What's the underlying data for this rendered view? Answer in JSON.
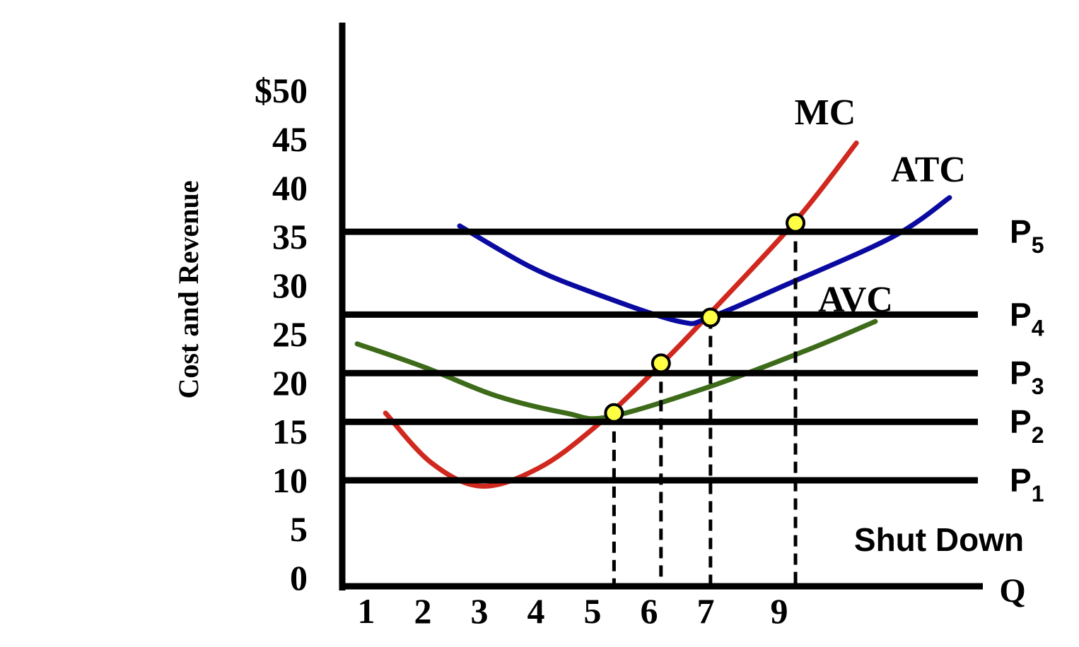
{
  "chart_data": {
    "type": "line",
    "title": "",
    "ylabel": "Cost and Revenue",
    "xlabel": "Q",
    "ylim": [
      0,
      50
    ],
    "y_ticks": [
      "0",
      "5",
      "10",
      "15",
      "20",
      "25",
      "30",
      "35",
      "40",
      "45",
      "$50"
    ],
    "y_tick_values": [
      0,
      5,
      10,
      15,
      20,
      25,
      30,
      35,
      40,
      45,
      50
    ],
    "x_ticks": [
      "1",
      "2",
      "3",
      "4",
      "5",
      "6",
      "7",
      "9"
    ],
    "x_tick_values": [
      1,
      2,
      3,
      4,
      5,
      6,
      7,
      9
    ],
    "grid": false,
    "series": [
      {
        "name": "MC",
        "color": "#d0281e",
        "x": [
          1.34,
          2.15,
          3.03,
          4.03,
          5.03,
          6.21,
          7.06,
          9.42,
          11.06
        ],
        "y": [
          16.9,
          11.8,
          9.4,
          11.2,
          15.4,
          21.9,
          26.9,
          36.6,
          44.6
        ]
      },
      {
        "name": "ATC",
        "color": "#0a0aa0",
        "x": [
          2.65,
          3.9,
          5.03,
          6.53,
          7.1,
          9.19,
          12.05,
          13.57
        ],
        "y": [
          36.1,
          31.9,
          29.2,
          26.3,
          26.7,
          30.1,
          35.0,
          39.0
        ]
      },
      {
        "name": "AVC",
        "color": "#3d6b1a",
        "x": [
          0.84,
          2.03,
          3.28,
          4.53,
          5.28,
          7.1,
          9.76,
          11.57
        ],
        "y": [
          24.0,
          21.6,
          18.7,
          16.9,
          16.5,
          19.6,
          23.4,
          26.3
        ]
      }
    ],
    "price_lines": [
      {
        "label": "P",
        "sub": "5",
        "value": 35.5
      },
      {
        "label": "P",
        "sub": "4",
        "value": 27
      },
      {
        "label": "P",
        "sub": "3",
        "value": 21
      },
      {
        "label": "P",
        "sub": "2",
        "value": 16
      },
      {
        "label": "P",
        "sub": "1",
        "value": 10
      }
    ],
    "points": [
      {
        "x": 5.38,
        "y": 16.9
      },
      {
        "x": 6.21,
        "y": 22.0
      },
      {
        "x": 7.13,
        "y": 26.7
      },
      {
        "x": 9.42,
        "y": 36.4
      }
    ],
    "point_color": "#ffff44",
    "annotations": [
      "Shut Down"
    ]
  }
}
